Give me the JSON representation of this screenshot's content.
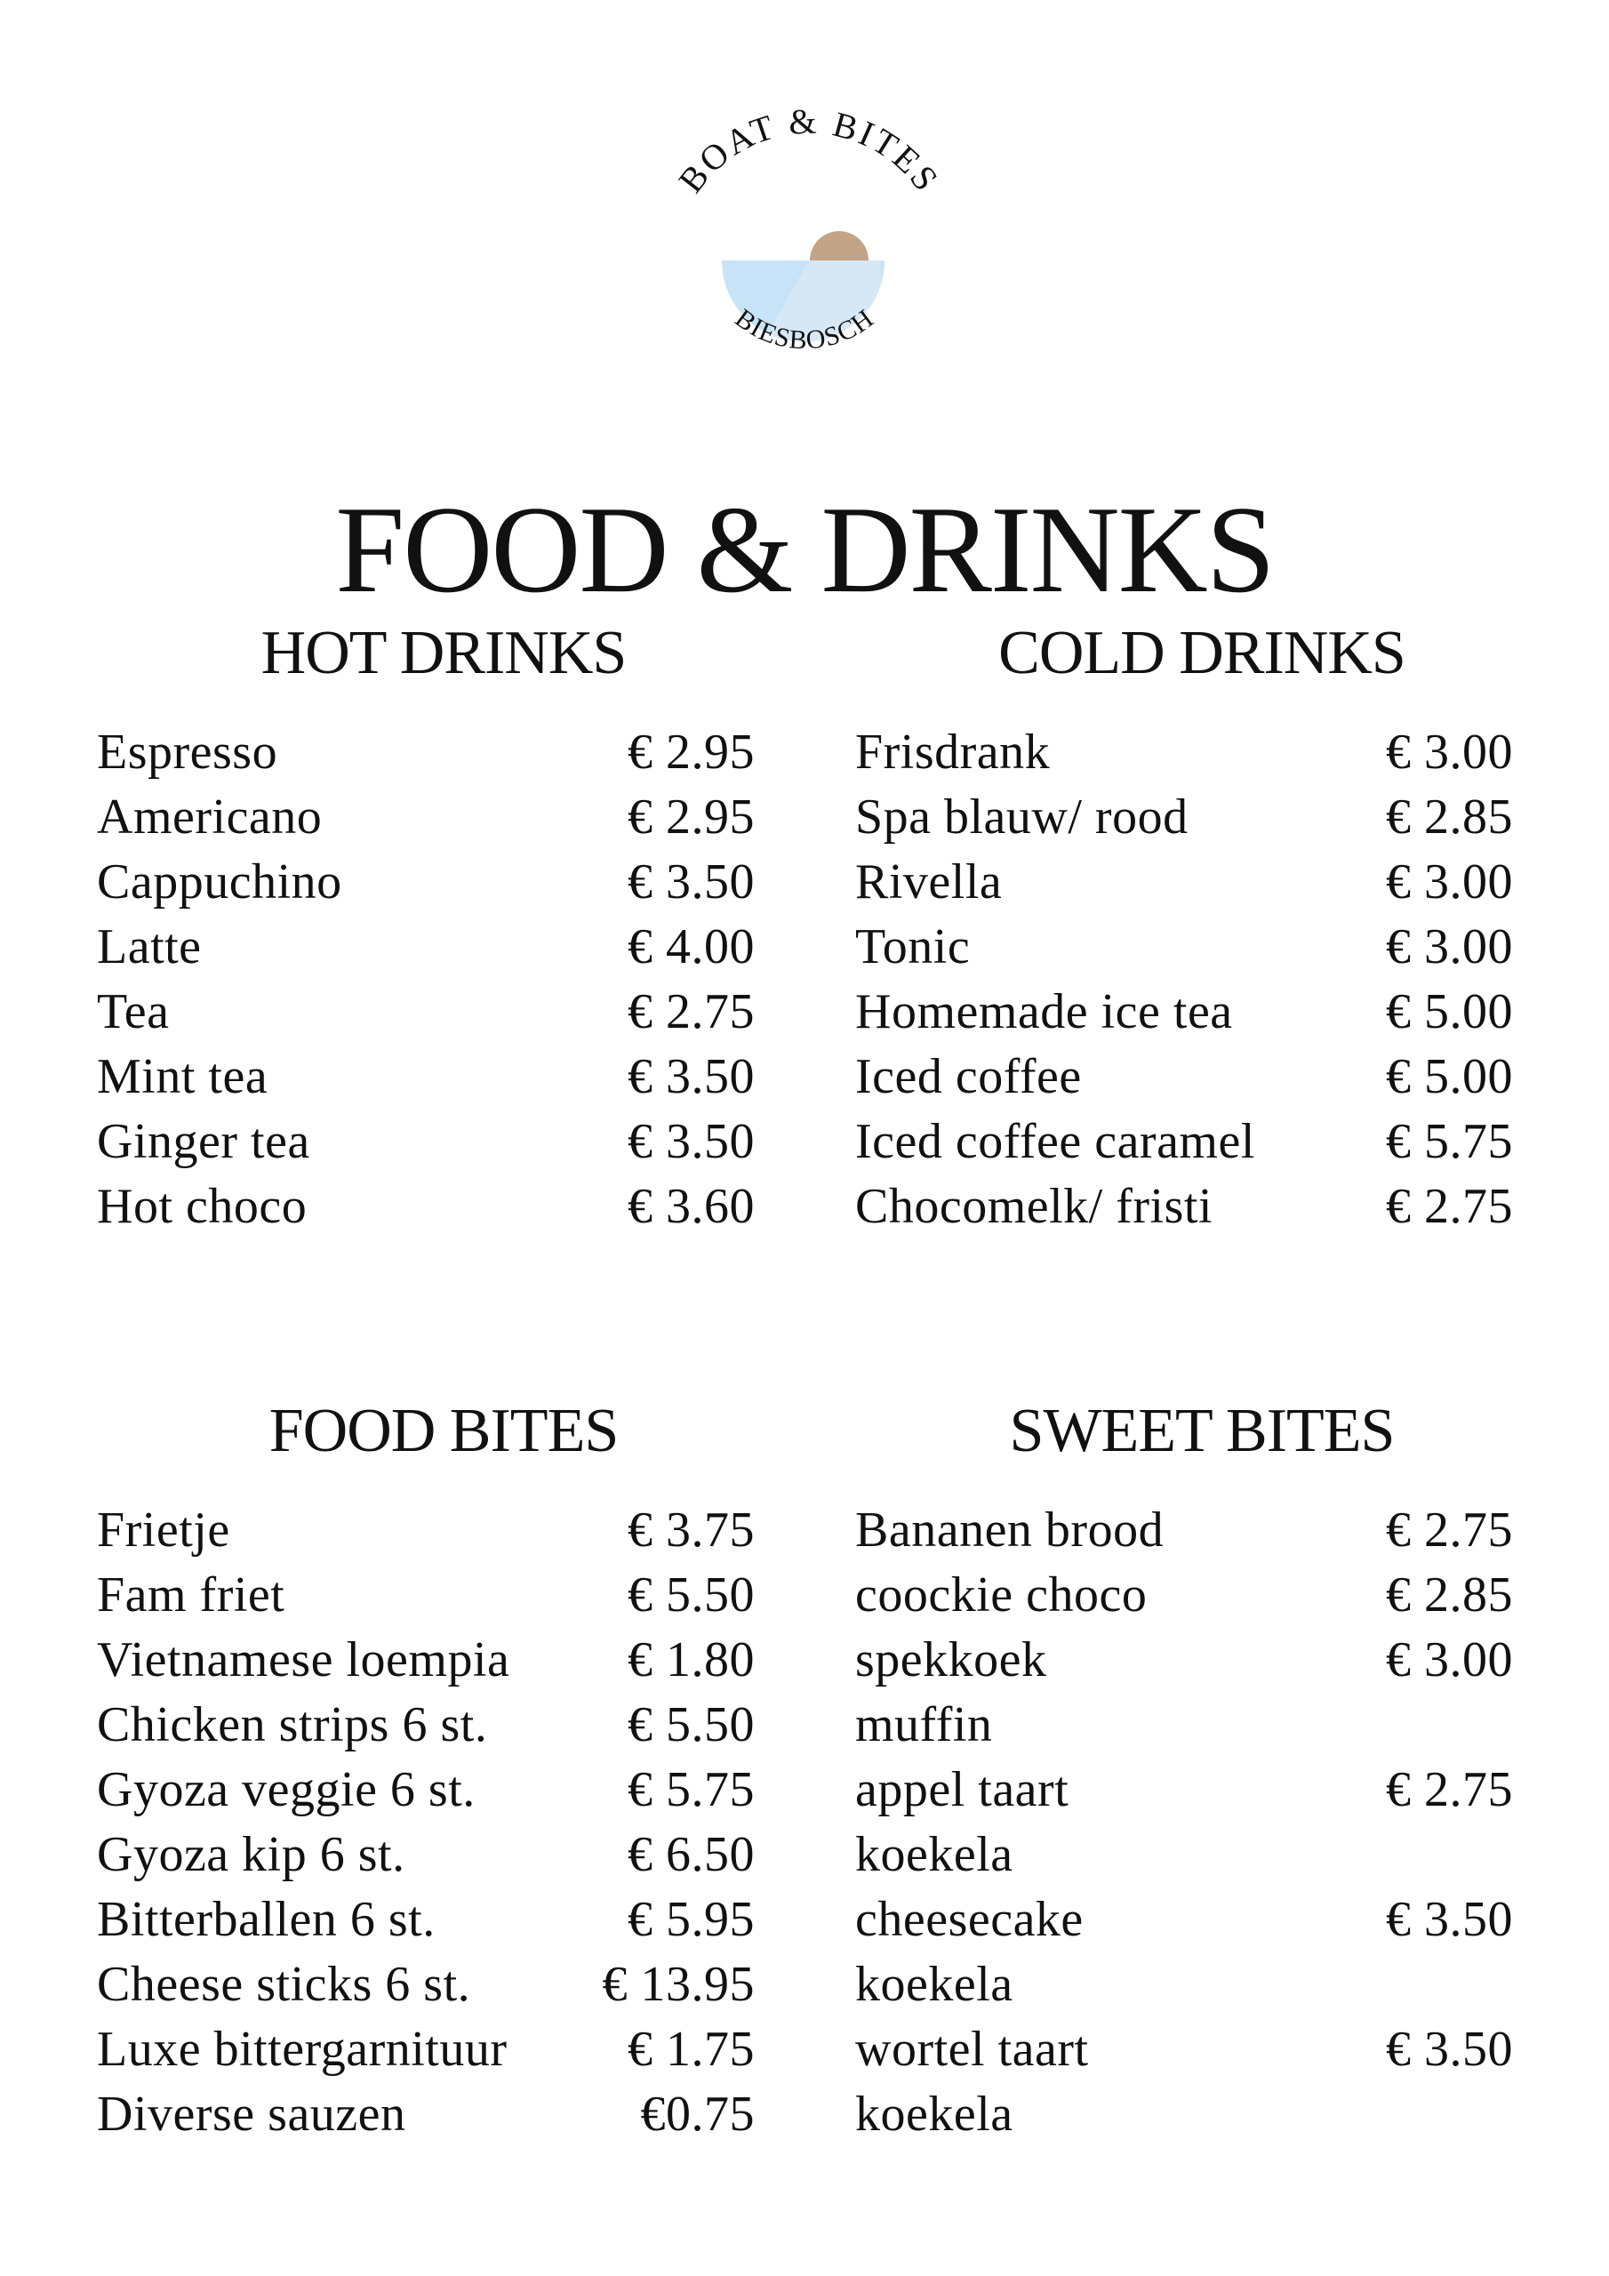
{
  "logo": {
    "top_text": "BOAT & BITES",
    "bottom_text": "BIESBOSCH",
    "colors": {
      "sun": "#c3a487",
      "water_dark": "#c6e3f7",
      "water_light": "#d6e8f6"
    }
  },
  "title": "FOOD & DRINKS",
  "sections": [
    {
      "heading": "HOT DRINKS",
      "items": [
        {
          "name": "Espresso",
          "price": "€ 2.95"
        },
        {
          "name": "Americano",
          "price": "€ 2.95"
        },
        {
          "name": "Cappuchino",
          "price": "€ 3.50"
        },
        {
          "name": "Latte",
          "price": "€ 4.00"
        },
        {
          "name": "Tea",
          "price": "€ 2.75"
        },
        {
          "name": "Mint tea",
          "price": "€ 3.50"
        },
        {
          "name": "Ginger tea",
          "price": "€ 3.50"
        },
        {
          "name": "Hot choco",
          "price": "€ 3.60"
        }
      ]
    },
    {
      "heading": "COLD DRINKS",
      "items": [
        {
          "name": "Frisdrank",
          "price": "€ 3.00"
        },
        {
          "name": "Spa blauw/ rood",
          "price": "€ 2.85"
        },
        {
          "name": "Rivella",
          "price": "€ 3.00"
        },
        {
          "name": "Tonic",
          "price": "€ 3.00"
        },
        {
          "name": "Homemade ice tea",
          "price": "€ 5.00"
        },
        {
          "name": "Iced coffee",
          "price": "€ 5.00"
        },
        {
          "name": "Iced coffee caramel",
          "price": "€ 5.75"
        },
        {
          "name": "Chocomelk/ fristi",
          "price": "€ 2.75"
        }
      ]
    },
    {
      "heading": "FOOD BITES",
      "items": [
        {
          "name": "Frietje",
          "price": "€ 3.75"
        },
        {
          "name": "Fam friet",
          "price": "€ 5.50"
        },
        {
          "name": "Vietnamese loempia",
          "price": "€ 1.80"
        },
        {
          "name": "Chicken strips 6 st.",
          "price": "€ 5.50"
        },
        {
          "name": "Gyoza veggie 6 st.",
          "price": "€ 5.75"
        },
        {
          "name": "Gyoza kip 6 st.",
          "price": "€ 6.50"
        },
        {
          "name": "Bitterballen 6 st.",
          "price": "€ 5.95"
        },
        {
          "name": "Cheese sticks 6 st.",
          "price": "€ 13.95"
        },
        {
          "name": "Luxe bittergarnituur",
          "price": "€ 1.75"
        },
        {
          "name": "Diverse sauzen",
          "price": "€0.75"
        }
      ]
    },
    {
      "heading": "SWEET BITES",
      "items": [
        {
          "name": "Bananen brood",
          "price": "€ 2.75"
        },
        {
          "name": "coockie choco",
          "price": "€ 2.85"
        },
        {
          "name": "spekkoek",
          "price": "€ 3.00"
        },
        {
          "name": "muffin",
          "price": ""
        },
        {
          "name": "appel taart",
          "price": "€ 2.75"
        },
        {
          "name": "koekela",
          "price": ""
        },
        {
          "name": "cheesecake",
          "price": "€ 3.50"
        },
        {
          "name": "koekela",
          "price": ""
        },
        {
          "name": "wortel taart",
          "price": "€ 3.50"
        },
        {
          "name": "koekela",
          "price": ""
        }
      ]
    }
  ]
}
